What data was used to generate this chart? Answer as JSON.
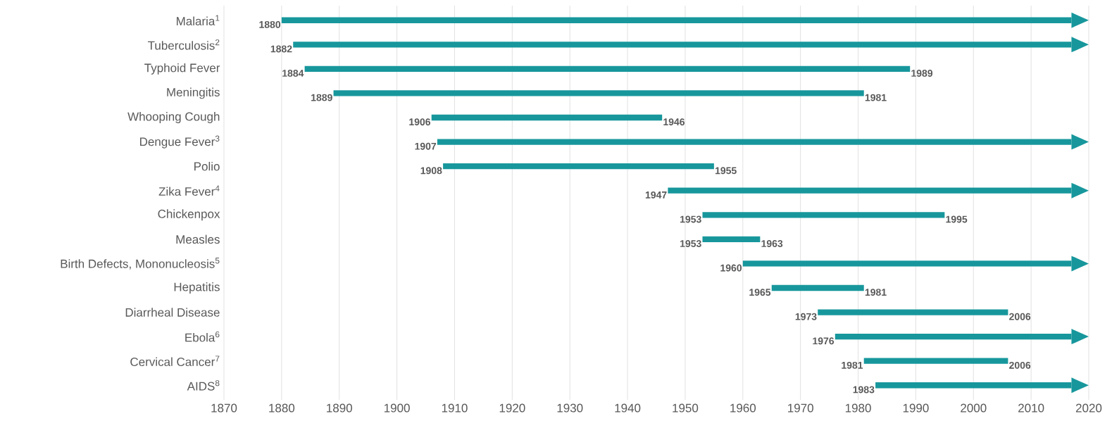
{
  "chart_data": {
    "type": "bar",
    "orientation": "horizontal",
    "color": "#17979c",
    "grid": "x",
    "categories": [
      "Malaria$^{1}$",
      "Tuberculosis$^{2}$",
      "Typhoid Fever",
      "Meningitis",
      "Whooping Cough",
      "Dengue Fever$^{3}$",
      "Polio",
      "Zika Fever$^{4}$",
      "Chickenpox",
      "Measles",
      "Birth Defects, Mononucleosis$^{5}$",
      "Hepatitis",
      "Diarrheal Disease",
      "Ebola$^{6}$",
      "Cervical Cancer$^{7}$",
      "AIDS$^{8}$"
    ],
    "base": [
      1880,
      1882,
      1884,
      1889,
      1906,
      1907,
      1908,
      1947,
      1953,
      1953,
      1960,
      1965,
      1973,
      1976,
      1981,
      1983
    ],
    "values": [
      137,
      135,
      105,
      92,
      40,
      110,
      47,
      70,
      42,
      10,
      57,
      16,
      33,
      41,
      25,
      34
    ],
    "xlim": [
      1870,
      2020
    ],
    "xticks": [
      1870,
      1880,
      1890,
      1900,
      1910,
      1920,
      1930,
      1940,
      1950,
      1960,
      1970,
      1980,
      1990,
      2000,
      2010,
      2020
    ],
    "annotations": [
      "1880",
      "1882",
      "1884",
      "1989",
      "1889",
      "1981",
      "1906",
      "1946",
      "1907",
      "1908",
      "1955",
      "1947",
      "1953",
      "1995",
      "1953",
      "1963",
      "1960",
      "1965",
      "1981",
      "1973",
      "2006",
      "1976",
      "1981",
      "2006",
      "1983"
    ]
  }
}
